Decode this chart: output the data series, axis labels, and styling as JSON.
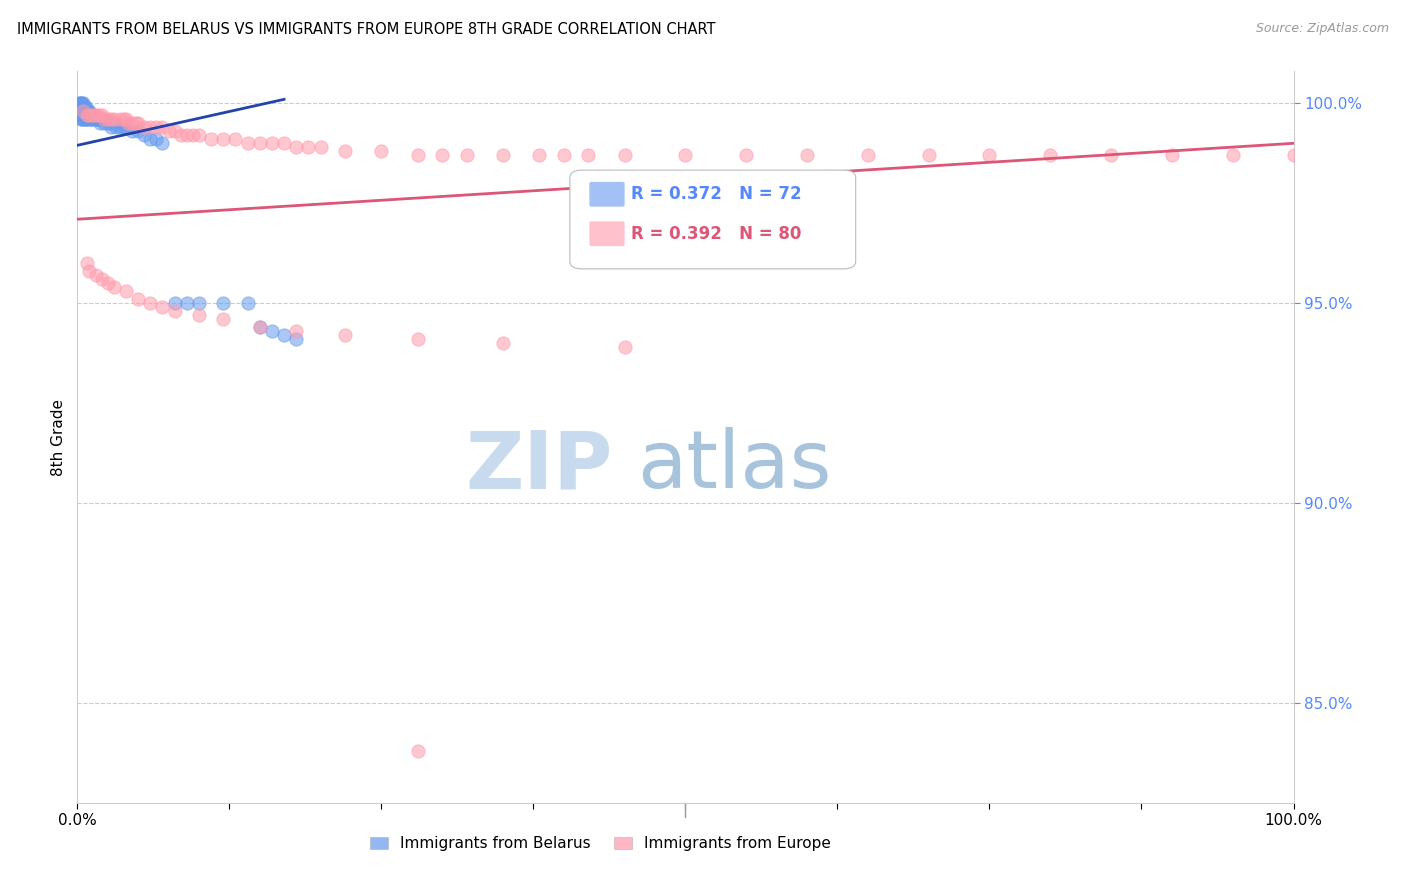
{
  "title": "IMMIGRANTS FROM BELARUS VS IMMIGRANTS FROM EUROPE 8TH GRADE CORRELATION CHART",
  "source": "Source: ZipAtlas.com",
  "ylabel": "8th Grade",
  "xlim": [
    0.0,
    1.0
  ],
  "ylim": [
    0.825,
    1.008
  ],
  "yticks": [
    0.85,
    0.9,
    0.95,
    1.0
  ],
  "ytick_labels": [
    "85.0%",
    "90.0%",
    "95.0%",
    "100.0%"
  ],
  "legend_text1": "R = 0.372   N = 72",
  "legend_text2": "R = 0.392   N = 80",
  "blue_color": "#6699EE",
  "pink_color": "#FF99AA",
  "blue_line_color": "#2244AA",
  "pink_line_color": "#DD5577",
  "watermark_zip_color": "#C8DAEE",
  "watermark_atlas_color": "#A8C4DD",
  "grid_color": "#CCCCCC",
  "ytick_color": "#5588FF",
  "source_color": "#999999",
  "blue_scatter_x": [
    0.001,
    0.001,
    0.002,
    0.002,
    0.002,
    0.002,
    0.003,
    0.003,
    0.003,
    0.003,
    0.003,
    0.004,
    0.004,
    0.004,
    0.004,
    0.004,
    0.005,
    0.005,
    0.005,
    0.005,
    0.005,
    0.006,
    0.006,
    0.006,
    0.006,
    0.007,
    0.007,
    0.007,
    0.007,
    0.008,
    0.008,
    0.008,
    0.009,
    0.009,
    0.01,
    0.01,
    0.01,
    0.011,
    0.011,
    0.012,
    0.012,
    0.013,
    0.014,
    0.015,
    0.016,
    0.017,
    0.018,
    0.019,
    0.02,
    0.022,
    0.025,
    0.028,
    0.03,
    0.032,
    0.035,
    0.038,
    0.04,
    0.045,
    0.05,
    0.055,
    0.06,
    0.065,
    0.07,
    0.08,
    0.09,
    0.1,
    0.12,
    0.14,
    0.15,
    0.16,
    0.17,
    0.18
  ],
  "blue_scatter_y": [
    1.0,
    0.999,
    1.0,
    0.999,
    0.998,
    0.997,
    1.0,
    0.999,
    0.998,
    0.997,
    0.996,
    1.0,
    0.999,
    0.998,
    0.997,
    0.996,
    1.0,
    0.999,
    0.998,
    0.997,
    0.996,
    0.999,
    0.998,
    0.997,
    0.996,
    0.999,
    0.998,
    0.997,
    0.996,
    0.998,
    0.997,
    0.996,
    0.998,
    0.997,
    0.998,
    0.997,
    0.996,
    0.997,
    0.996,
    0.997,
    0.996,
    0.996,
    0.997,
    0.996,
    0.996,
    0.996,
    0.996,
    0.995,
    0.996,
    0.995,
    0.995,
    0.994,
    0.995,
    0.994,
    0.994,
    0.994,
    0.994,
    0.993,
    0.993,
    0.992,
    0.991,
    0.991,
    0.99,
    0.95,
    0.95,
    0.95,
    0.95,
    0.95,
    0.944,
    0.943,
    0.942,
    0.941
  ],
  "pink_scatter_x": [
    0.005,
    0.008,
    0.01,
    0.012,
    0.014,
    0.016,
    0.018,
    0.02,
    0.022,
    0.025,
    0.028,
    0.03,
    0.035,
    0.038,
    0.04,
    0.042,
    0.045,
    0.048,
    0.05,
    0.055,
    0.06,
    0.065,
    0.07,
    0.075,
    0.08,
    0.085,
    0.09,
    0.095,
    0.1,
    0.11,
    0.12,
    0.13,
    0.14,
    0.15,
    0.16,
    0.17,
    0.18,
    0.19,
    0.2,
    0.22,
    0.25,
    0.28,
    0.3,
    0.32,
    0.35,
    0.38,
    0.4,
    0.42,
    0.45,
    0.5,
    0.55,
    0.6,
    0.65,
    0.7,
    0.75,
    0.8,
    0.85,
    0.9,
    0.95,
    1.0,
    0.008,
    0.01,
    0.015,
    0.02,
    0.025,
    0.03,
    0.04,
    0.05,
    0.06,
    0.07,
    0.08,
    0.1,
    0.12,
    0.15,
    0.18,
    0.22,
    0.28,
    0.35,
    0.45,
    0.28
  ],
  "pink_scatter_y": [
    0.998,
    0.997,
    0.997,
    0.997,
    0.997,
    0.997,
    0.997,
    0.997,
    0.996,
    0.996,
    0.996,
    0.996,
    0.996,
    0.996,
    0.996,
    0.995,
    0.995,
    0.995,
    0.995,
    0.994,
    0.994,
    0.994,
    0.994,
    0.993,
    0.993,
    0.992,
    0.992,
    0.992,
    0.992,
    0.991,
    0.991,
    0.991,
    0.99,
    0.99,
    0.99,
    0.99,
    0.989,
    0.989,
    0.989,
    0.988,
    0.988,
    0.987,
    0.987,
    0.987,
    0.987,
    0.987,
    0.987,
    0.987,
    0.987,
    0.987,
    0.987,
    0.987,
    0.987,
    0.987,
    0.987,
    0.987,
    0.987,
    0.987,
    0.987,
    0.987,
    0.96,
    0.958,
    0.957,
    0.956,
    0.955,
    0.954,
    0.953,
    0.951,
    0.95,
    0.949,
    0.948,
    0.947,
    0.946,
    0.944,
    0.943,
    0.942,
    0.941,
    0.94,
    0.939,
    0.838
  ],
  "blue_line_x": [
    0.0,
    0.17
  ],
  "blue_line_y": [
    0.9895,
    1.001
  ],
  "pink_line_x": [
    0.0,
    1.0
  ],
  "pink_line_y": [
    0.971,
    0.99
  ]
}
